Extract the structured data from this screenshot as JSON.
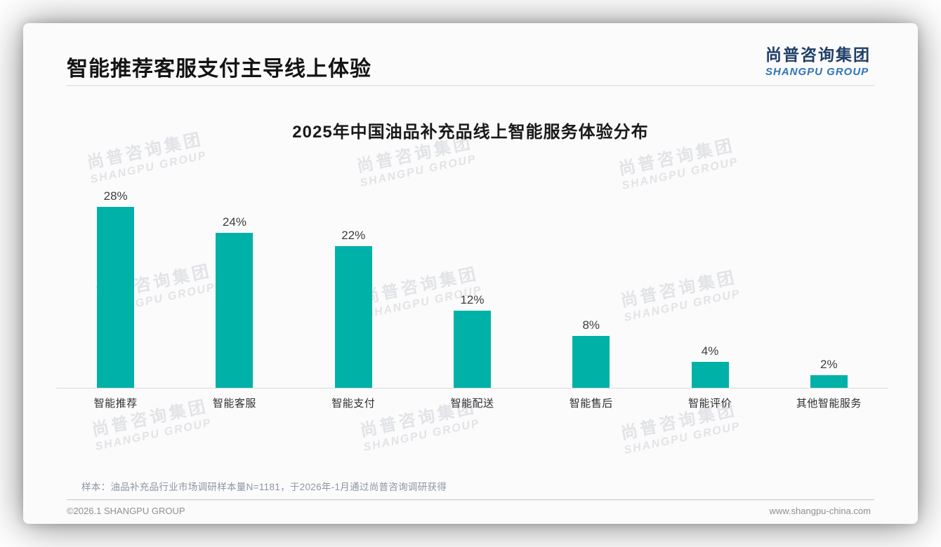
{
  "header": {
    "title": "智能推荐客服支付主导线上体验",
    "logo": {
      "chinese": "尚普咨询集团",
      "english": "SHANGPU GROUP"
    }
  },
  "chart_data": {
    "type": "bar",
    "title": "2025年中国油品补充品线上智能服务体验分布",
    "categories": [
      "智能推荐",
      "智能客服",
      "智能支付",
      "智能配送",
      "智能售后",
      "智能评价",
      "其他智能服务"
    ],
    "values": [
      28,
      24,
      22,
      12,
      8,
      4,
      2
    ],
    "value_labels": [
      "28%",
      "24%",
      "22%",
      "12%",
      "8%",
      "4%",
      "2%"
    ],
    "unit": "%",
    "xlabel": "",
    "ylabel": "",
    "ylim": [
      0,
      30
    ],
    "grid": false,
    "legend": false,
    "bar_color": "#00b1a7"
  },
  "footnote": {
    "text": "样本：油品补充品行业市场调研样本量N=1181，于2026年-1月通过尚普咨询调研获得"
  },
  "footer": {
    "copyright": "©2026.1 SHANGPU GROUP",
    "website": "www.shangpu-china.com"
  },
  "watermark": {
    "line1": "尚普咨询集团",
    "line2": "SHANGPU GROUP"
  },
  "colors": {
    "accent_teal": "#00b1a7",
    "logo_navy": "#1f3f66",
    "logo_blue": "#2f74b8"
  }
}
